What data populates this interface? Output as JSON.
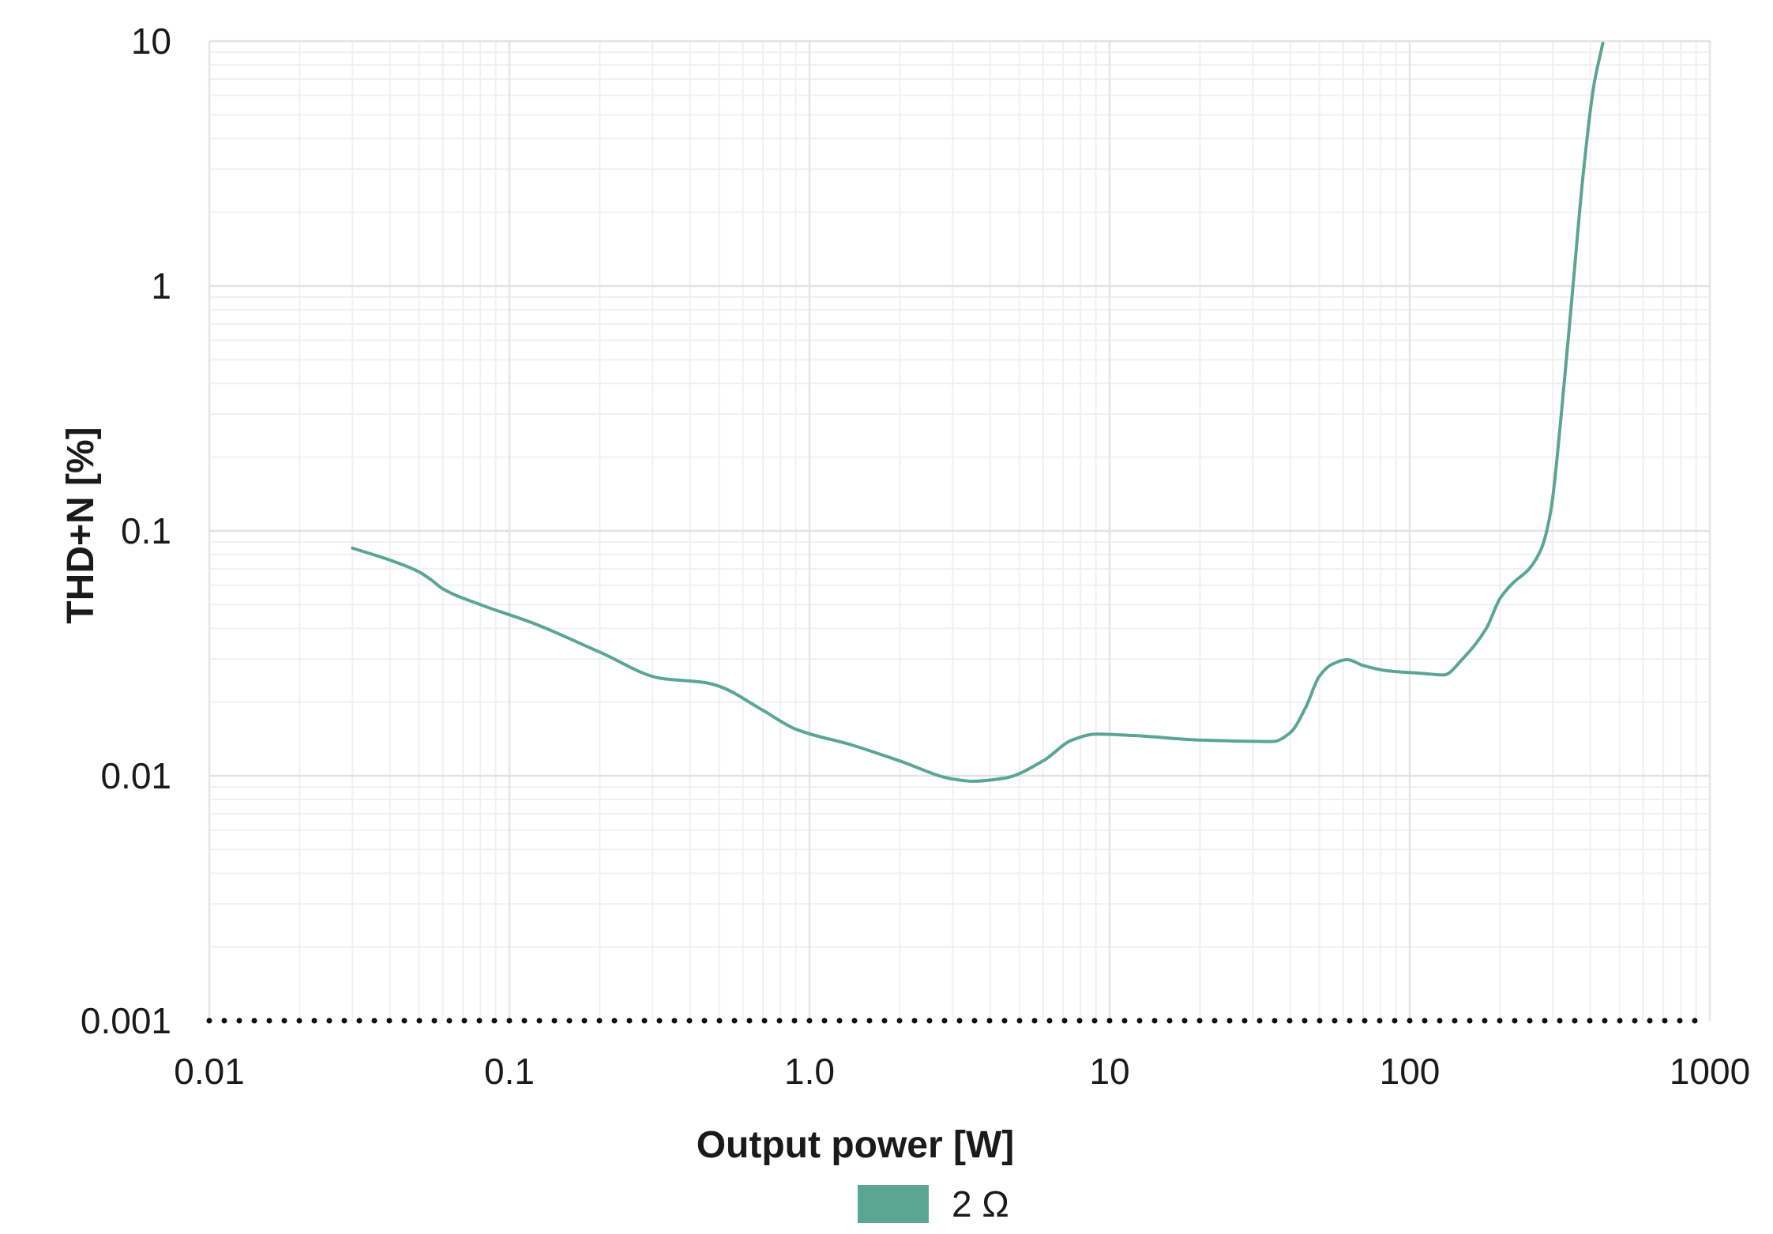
{
  "chart_data": {
    "type": "line",
    "title": "",
    "xlabel": "Output power [W]",
    "ylabel": "THD+N [%]",
    "x_scale": "log",
    "y_scale": "log",
    "xlim": [
      0.01,
      1000
    ],
    "ylim": [
      0.001,
      10
    ],
    "x_ticks": [
      0.01,
      0.1,
      1,
      10,
      100,
      1000
    ],
    "x_tick_labels": [
      "0.01",
      "0.1",
      "1.0",
      "10",
      "100",
      "1000"
    ],
    "y_ticks": [
      0.001,
      0.01,
      0.1,
      1,
      10
    ],
    "y_tick_labels": [
      "0.001",
      "0.01",
      "0.1",
      "1",
      "10"
    ],
    "grid": true,
    "legend_position": "bottom-center",
    "series": [
      {
        "name": "2 Ω",
        "color": "#5ba595",
        "x": [
          0.03,
          0.04,
          0.05,
          0.055,
          0.06,
          0.08,
          0.12,
          0.2,
          0.32,
          0.45,
          0.5,
          0.7,
          0.9,
          1.4,
          2.0,
          3.0,
          3.5,
          4.5,
          6.0,
          7.5,
          9.0,
          12,
          20,
          35,
          40,
          45,
          50,
          55,
          62,
          70,
          85,
          110,
          130,
          150,
          180,
          200,
          220,
          250,
          275,
          295,
          320,
          350,
          380,
          410,
          440
        ],
        "y": [
          0.085,
          0.076,
          0.068,
          0.063,
          0.058,
          0.05,
          0.042,
          0.032,
          0.025,
          0.024,
          0.0232,
          0.0185,
          0.0155,
          0.0133,
          0.0115,
          0.0097,
          0.0095,
          0.0098,
          0.0115,
          0.014,
          0.0148,
          0.0146,
          0.014,
          0.0138,
          0.015,
          0.019,
          0.0255,
          0.0285,
          0.0298,
          0.0282,
          0.0268,
          0.0262,
          0.0258,
          0.03,
          0.04,
          0.053,
          0.061,
          0.07,
          0.085,
          0.12,
          0.3,
          1.0,
          3.0,
          6.5,
          9.8
        ]
      }
    ]
  }
}
